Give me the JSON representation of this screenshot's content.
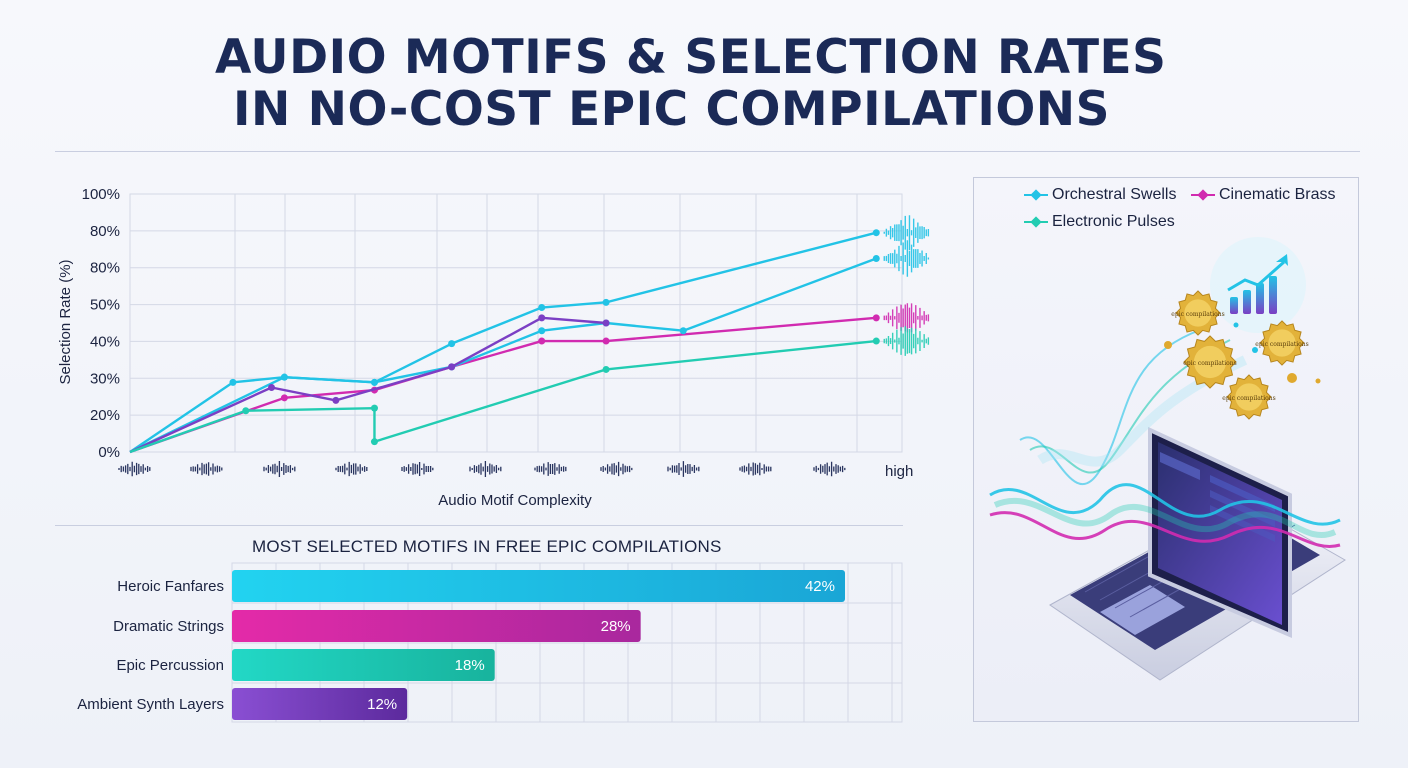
{
  "title": {
    "line1": "AUDIO MOTIFS & SELECTION RATES",
    "line2": "IN NO-COST EPIC COMPILATIONS"
  },
  "colors": {
    "orchestral": "#22c3e6",
    "brass": "#d12bb0",
    "electronic": "#22ccb2",
    "purple": "#7b3fc4",
    "navy": "#1b2a57"
  },
  "chart_data": [
    {
      "type": "line",
      "ylabel": "Selection Rate (%)",
      "xlabel": "Audio Motif Complexity",
      "x_end_label": "high",
      "yticks": [
        "100%",
        "80%",
        "80%",
        "50%",
        "40%",
        "30%",
        "20%",
        "0%"
      ],
      "grid": true,
      "legend": "top-right",
      "series": [
        {
          "name": "Orchestral Swells",
          "color": "#22c3e6",
          "points": [
            [
              0,
              0
            ],
            [
              0.8,
              27
            ],
            [
              1.2,
              29
            ],
            [
              1.9,
              27
            ],
            [
              2.5,
              42
            ],
            [
              3.2,
              56
            ],
            [
              3.7,
              58
            ],
            [
              5.8,
              85
            ]
          ]
        },
        {
          "name": "Cinematic Brass",
          "color": "#d12bb0",
          "points": [
            [
              0,
              0
            ],
            [
              1.2,
              21
            ],
            [
              1.9,
              24
            ],
            [
              2.5,
              33
            ],
            [
              3.2,
              43
            ],
            [
              3.7,
              43
            ],
            [
              5.8,
              52
            ]
          ]
        },
        {
          "color": "#22c3e6",
          "points": [
            [
              0,
              0
            ],
            [
              1.2,
              29
            ],
            [
              1.9,
              27
            ],
            [
              2.5,
              33
            ],
            [
              3.2,
              47
            ],
            [
              3.7,
              50
            ],
            [
              4.3,
              47
            ],
            [
              5.8,
              75
            ]
          ]
        },
        {
          "color": "#7b3fc4",
          "points": [
            [
              0,
              0
            ],
            [
              1.1,
              25
            ],
            [
              1.6,
              20
            ],
            [
              2.5,
              33
            ],
            [
              3.2,
              52
            ],
            [
              3.7,
              50
            ]
          ]
        },
        {
          "name": "Electronic Pulses",
          "color": "#22ccb2",
          "points": [
            [
              0,
              0
            ],
            [
              0.9,
              16
            ],
            [
              1.9,
              17
            ],
            [
              1.9,
              4
            ],
            [
              3.7,
              32
            ],
            [
              5.8,
              43
            ]
          ]
        }
      ]
    },
    {
      "type": "bar",
      "title": "MOST SELECTED MOTIFS IN FREE EPIC COMPILATIONS",
      "categories": [
        "Heroic Fanfares",
        "Dramatic Strings",
        "Epic Percussion",
        "Ambient Synth Layers"
      ],
      "values": [
        42,
        28,
        18,
        12
      ],
      "value_labels": [
        "42%",
        "28%",
        "18%",
        "12%"
      ],
      "colors": [
        [
          "#22d3f0",
          "#1aa6d6"
        ],
        [
          "#e42aa8",
          "#a9289e"
        ],
        [
          "#22d8c6",
          "#18b39d"
        ],
        [
          "#8a4fd3",
          "#5c2a9d"
        ]
      ]
    }
  ],
  "illustration": {
    "badges": [
      "epic compilations",
      "epic compilations",
      "epic compilations",
      "epic compilations"
    ]
  }
}
